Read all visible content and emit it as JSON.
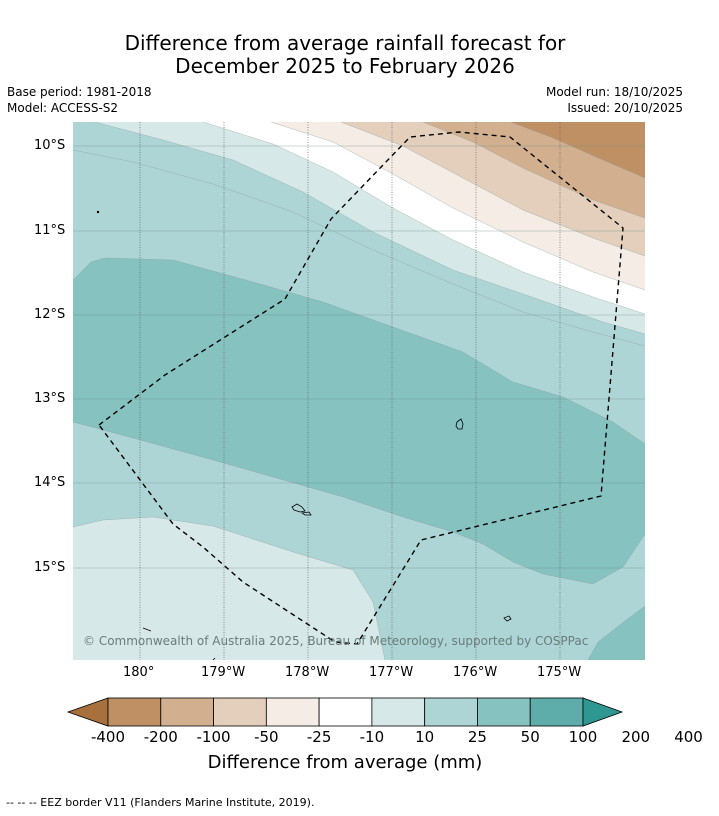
{
  "title": {
    "line1": "Difference from average rainfall forecast for",
    "line2": "December 2025 to February 2026"
  },
  "meta": {
    "base_period": "Base period: 1981-2018",
    "model": "Model: ACCESS-S2",
    "model_run": "Model run: 18/10/2025",
    "issued": "Issued: 20/10/2025"
  },
  "map": {
    "lat_ticks": [
      "10°S",
      "11°S",
      "12°S",
      "13°S",
      "14°S",
      "15°S"
    ],
    "lon_ticks": [
      "180°",
      "179°W",
      "178°W",
      "177°W",
      "176°W",
      "175°W"
    ],
    "copyright": "© Commonwealth of Australia 2025, Bureau of Meteorology, supported by COSPPac",
    "colors": {
      "c_m400": "#a8703a",
      "c_m200": "#bf9064",
      "c_m100": "#d2b08f",
      "c_m50": "#e3cfbc",
      "c_m25": "#f4ece5",
      "c_0": "#ffffff",
      "c_10": "#d6e9e8",
      "c_25": "#aed5d5",
      "c_50": "#85c2c0",
      "c_100": "#5eadab",
      "c_200": "#2f9792"
    }
  },
  "colorbar": {
    "labels": [
      "-400",
      "-200",
      "-100",
      "-50",
      "-25",
      "-10",
      "10",
      "25",
      "50",
      "100",
      "200",
      "400"
    ],
    "colors": [
      "#a8703a",
      "#bf9064",
      "#d2b08f",
      "#e3cfbc",
      "#f4ece5",
      "#ffffff",
      "#d6e9e8",
      "#aed5d5",
      "#85c2c0",
      "#5eadab",
      "#2f9792"
    ],
    "title": "Difference from average (mm)"
  },
  "footnote": "--  --  -- EEZ border V11 (Flanders Marine Institute, 2019)."
}
